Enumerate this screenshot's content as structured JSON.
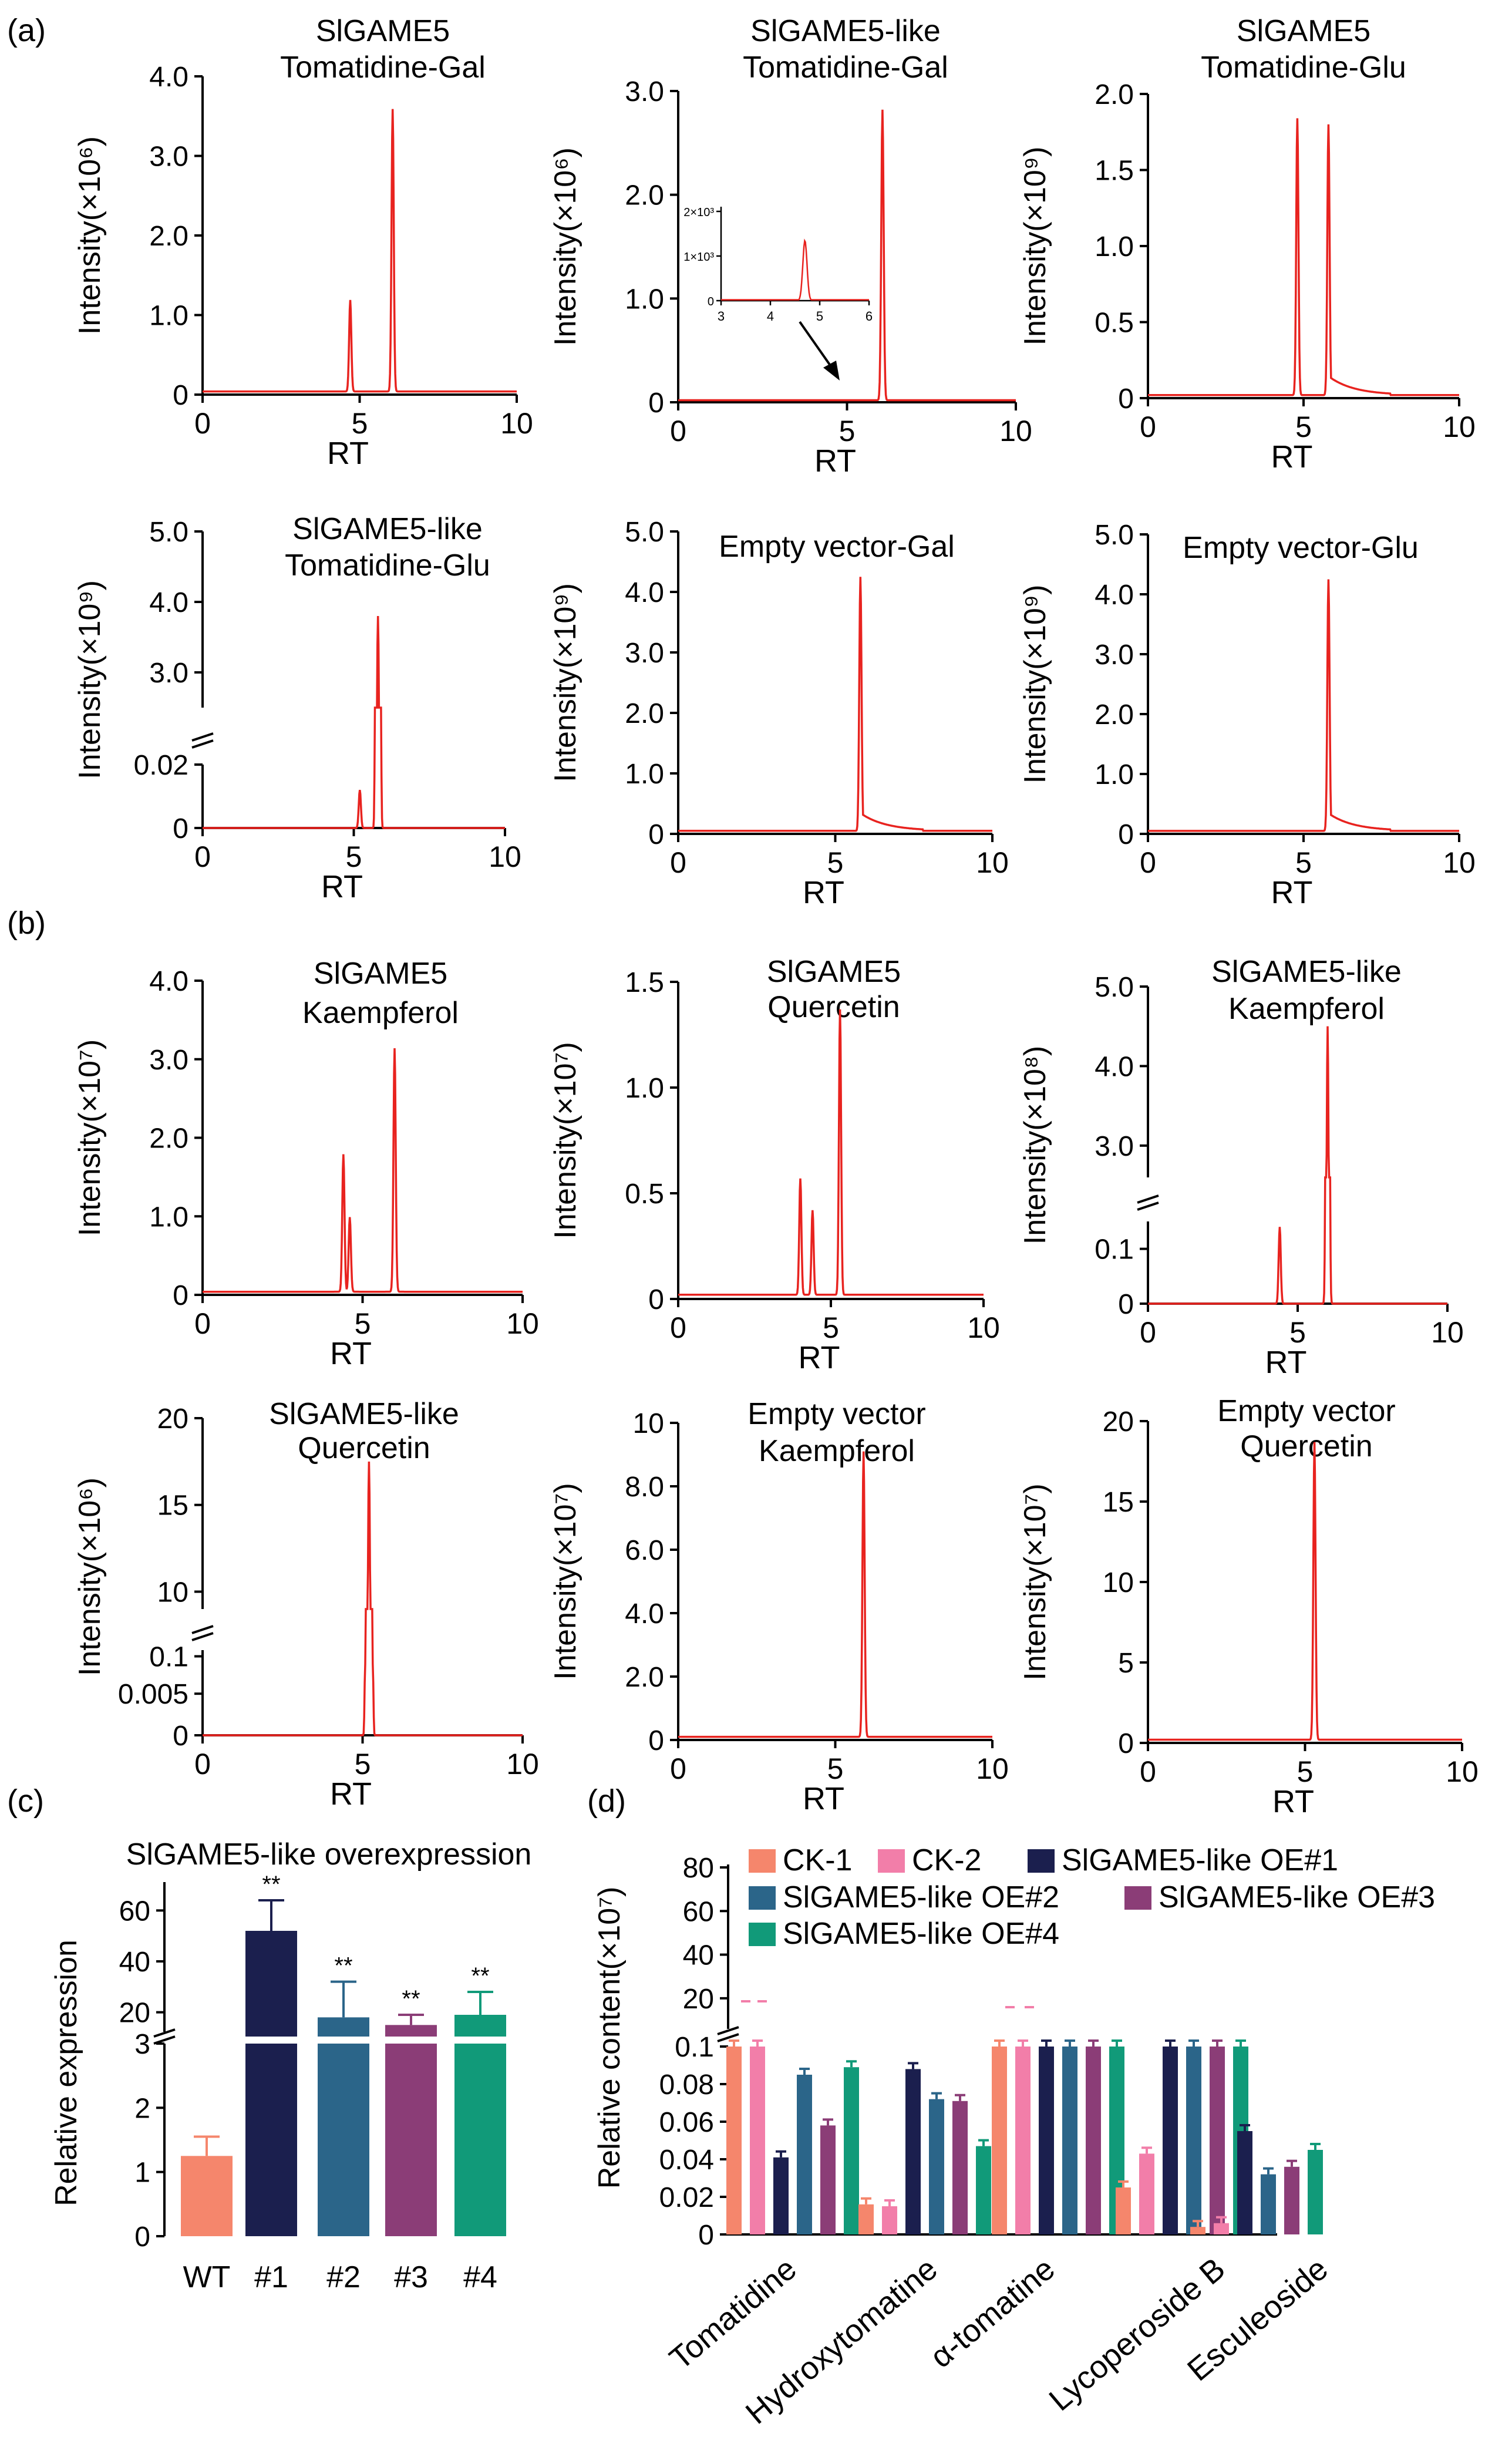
{
  "panel_labels": {
    "a": "(a)",
    "b": "(b)",
    "c": "(c)",
    "d": "(d)"
  },
  "colors": {
    "trace": "#e8231f",
    "axis": "#000000"
  },
  "chart_data": [
    {
      "id": "a1",
      "type": "line",
      "title": [
        "SlGAME5",
        "Tomatidine-Gal"
      ],
      "xlabel": "RT",
      "ylabel": "Intensity(×10⁶)",
      "xlim": [
        0,
        10
      ],
      "ylim": [
        0,
        4.0
      ],
      "xticks": [
        0,
        5,
        10
      ],
      "yticks": [
        0,
        1.0,
        2.0,
        3.0,
        4.0
      ],
      "ytick_labels": [
        "0",
        "1.0",
        "2.0",
        "3.0",
        "4.0"
      ],
      "peaks": [
        {
          "x": 4.7,
          "y": 1.15
        },
        {
          "x": 6.05,
          "y": 3.55
        }
      ],
      "baseline": 0.04
    },
    {
      "id": "a2",
      "type": "line",
      "title": [
        "SlGAME5-like",
        "Tomatidine-Gal"
      ],
      "xlabel": "RT",
      "ylabel": "Intensity(×10⁶)",
      "xlim": [
        0,
        10
      ],
      "ylim": [
        0,
        3.0
      ],
      "xticks": [
        0,
        5,
        10
      ],
      "yticks": [
        0,
        1.0,
        2.0,
        3.0
      ],
      "ytick_labels": [
        "0",
        "1.0",
        "2.0",
        "3.0"
      ],
      "peaks": [
        {
          "x": 6.05,
          "y": 2.8
        }
      ],
      "baseline": 0.02,
      "inset": {
        "xlim": [
          3,
          6
        ],
        "ylim": [
          0,
          2
        ],
        "xticks": [
          3,
          4,
          5,
          6
        ],
        "yticks": [
          1,
          2
        ],
        "ytick_labels": [
          "1×10³",
          "2×10³"
        ],
        "peaks": [
          {
            "x": 4.7,
            "y": 1.35
          }
        ]
      }
    },
    {
      "id": "a3",
      "type": "line",
      "title": [
        "SlGAME5",
        "Tomatidine-Glu"
      ],
      "xlabel": "RT",
      "ylabel": "Intensity(×10⁹)",
      "xlim": [
        0,
        10
      ],
      "ylim": [
        0,
        2.0
      ],
      "xticks": [
        0,
        5,
        10
      ],
      "yticks": [
        0,
        0.5,
        1.0,
        1.5,
        2.0
      ],
      "ytick_labels": [
        "0",
        "0.5",
        "1.0",
        "1.5",
        "2.0"
      ],
      "peaks": [
        {
          "x": 4.8,
          "y": 1.82
        },
        {
          "x": 5.8,
          "y": 1.78
        }
      ],
      "baseline": 0.02
    },
    {
      "id": "a4",
      "type": "line",
      "title": [
        "SlGAME5-like",
        "Tomatidine-Glu"
      ],
      "xlabel": "RT",
      "ylabel": "Intensity(×10⁹)",
      "xlim": [
        0,
        10
      ],
      "xticks": [
        0,
        5,
        10
      ],
      "ytick_labels": [
        "0",
        "0.02",
        "3.0",
        "4.0",
        "5.0"
      ],
      "broken_axis": true,
      "peaks": [
        {
          "x": 5.2,
          "y": 0.012
        },
        {
          "x": 5.8,
          "y": 3.8
        }
      ]
    },
    {
      "id": "a5",
      "type": "line",
      "title": [
        "Empty vector-Gal"
      ],
      "xlabel": "RT",
      "ylabel": "Intensity(×10⁹)",
      "xlim": [
        0,
        10
      ],
      "ylim": [
        0,
        5.0
      ],
      "xticks": [
        0,
        5,
        10
      ],
      "yticks": [
        0,
        1.0,
        2.0,
        3.0,
        4.0,
        5.0
      ],
      "ytick_labels": [
        "0",
        "1.0",
        "2.0",
        "3.0",
        "4.0",
        "5.0"
      ],
      "peaks": [
        {
          "x": 5.8,
          "y": 4.2
        }
      ],
      "baseline": 0.05
    },
    {
      "id": "a6",
      "type": "line",
      "title": [
        "Empty vector-Glu"
      ],
      "xlabel": "RT",
      "ylabel": "Intensity(×10⁹)",
      "xlim": [
        0,
        10
      ],
      "ylim": [
        0,
        5.0
      ],
      "xticks": [
        0,
        5,
        10
      ],
      "yticks": [
        0,
        1.0,
        2.0,
        3.0,
        4.0,
        5.0
      ],
      "ytick_labels": [
        "0",
        "1.0",
        "2.0",
        "3.0",
        "4.0",
        "5.0"
      ],
      "peaks": [
        {
          "x": 5.8,
          "y": 4.2
        }
      ],
      "baseline": 0.05
    },
    {
      "id": "b1",
      "type": "line",
      "title": [
        "SlGAME5",
        "Kaempferol"
      ],
      "xlabel": "RT",
      "ylabel": "Intensity(×10⁷)",
      "xlim": [
        0,
        10
      ],
      "ylim": [
        0,
        4.0
      ],
      "xticks": [
        0,
        5,
        10
      ],
      "yticks": [
        0,
        1.0,
        2.0,
        3.0,
        4.0
      ],
      "ytick_labels": [
        "0",
        "1.0",
        "2.0",
        "3.0",
        "4.0"
      ],
      "peaks": [
        {
          "x": 4.4,
          "y": 1.75
        },
        {
          "x": 4.6,
          "y": 0.95
        },
        {
          "x": 6.0,
          "y": 3.1
        }
      ],
      "baseline": 0.04
    },
    {
      "id": "b2",
      "type": "line",
      "title": [
        "SlGAME5",
        "Quercetin"
      ],
      "xlabel": "RT",
      "ylabel": "Intensity(×10⁷)",
      "xlim": [
        0,
        10
      ],
      "ylim": [
        0,
        1.5
      ],
      "xticks": [
        0,
        5,
        10
      ],
      "yticks": [
        0,
        0.5,
        1.0,
        1.5
      ],
      "ytick_labels": [
        "0",
        "0.5",
        "1.0",
        "1.5"
      ],
      "peaks": [
        {
          "x": 4.0,
          "y": 0.55
        },
        {
          "x": 4.4,
          "y": 0.4
        },
        {
          "x": 5.3,
          "y": 1.35
        }
      ],
      "baseline": 0.02
    },
    {
      "id": "b3",
      "type": "line",
      "title": [
        "SlGAME5-like",
        "Kaempferol"
      ],
      "xlabel": "RT",
      "ylabel": "Intensity(×10⁸)",
      "xlim": [
        0,
        10
      ],
      "xticks": [
        0,
        5,
        10
      ],
      "ytick_labels": [
        "0",
        "0.1",
        "3.0",
        "4.0",
        "5.0"
      ],
      "broken_axis": true,
      "peaks": [
        {
          "x": 4.4,
          "y": 0.14
        },
        {
          "x": 6.0,
          "y": 4.5
        }
      ]
    },
    {
      "id": "b4",
      "type": "line",
      "title": [
        "SlGAME5-like",
        "Quercetin"
      ],
      "xlabel": "RT",
      "ylabel": "Intensity(×10⁶)",
      "xlim": [
        0,
        10
      ],
      "xticks": [
        0,
        5,
        10
      ],
      "ytick_labels": [
        "0",
        "0.005",
        "0.1",
        "10",
        "15",
        "20"
      ],
      "broken_axis": true,
      "peaks": [
        {
          "x": 5.2,
          "y": 17.5
        }
      ]
    },
    {
      "id": "b5",
      "type": "line",
      "title": [
        "Empty vector",
        "Kaempferol"
      ],
      "xlabel": "RT",
      "ylabel": "Intensity(×10⁷)",
      "xlim": [
        0,
        10
      ],
      "ylim": [
        0,
        10
      ],
      "xticks": [
        0,
        5,
        10
      ],
      "yticks": [
        0,
        2.0,
        4.0,
        6.0,
        8.0,
        10
      ],
      "ytick_labels": [
        "0",
        "2.0",
        "4.0",
        "6.0",
        "8.0",
        "10"
      ],
      "peaks": [
        {
          "x": 5.9,
          "y": 9.0
        }
      ],
      "baseline": 0.1
    },
    {
      "id": "b6",
      "type": "line",
      "title": [
        "Empty vector",
        "Quercetin"
      ],
      "xlabel": "RT",
      "ylabel": "Intensity(×10⁷)",
      "xlim": [
        0,
        10
      ],
      "ylim": [
        0,
        20
      ],
      "xticks": [
        0,
        5,
        10
      ],
      "yticks": [
        0,
        5,
        10,
        15,
        20
      ],
      "ytick_labels": [
        "0",
        "5",
        "10",
        "15",
        "20"
      ],
      "peaks": [
        {
          "x": 5.3,
          "y": 18.5
        }
      ],
      "baseline": 0.2
    },
    {
      "id": "c",
      "type": "bar",
      "title": "SlGAME5-like overexpression",
      "xlabel": "",
      "ylabel": "Relative  expression",
      "categories": [
        "WT",
        "#1",
        "#2",
        "#3",
        "#4"
      ],
      "values": [
        1.25,
        52,
        18,
        15,
        19
      ],
      "errors": [
        0.3,
        12,
        14,
        4,
        9
      ],
      "significance": [
        "",
        "**",
        "**",
        "**",
        "**"
      ],
      "colors": [
        "#f5866c",
        "#1b1f4e",
        "#2b6589",
        "#8b3d77",
        "#119a79"
      ],
      "broken_axis": true,
      "ytick_labels": [
        "0",
        "1",
        "2",
        "3",
        "20",
        "40",
        "60"
      ]
    },
    {
      "id": "d",
      "type": "bar",
      "title": "",
      "xlabel": "",
      "ylabel": "Relative content(×10⁷)",
      "categories": [
        "Tomatidine",
        "Hydroxytomatine",
        "α-tomatine",
        "Lycoperoside B",
        "Esculeoside"
      ],
      "series": [
        {
          "name": "CK-1",
          "color": "#f5866c",
          "values": [
            0.1,
            0.016,
            0.1,
            0.025,
            0.004
          ]
        },
        {
          "name": "CK-2",
          "color": "#f27ea9",
          "values": [
            0.1,
            0.015,
            0.1,
            0.043,
            0.006
          ]
        },
        {
          "name": "SlGAME5-like OE#1",
          "color": "#1b1f4e",
          "values": [
            0.041,
            0.088,
            0.1,
            0.1,
            0.055
          ]
        },
        {
          "name": "SlGAME5-like OE#2",
          "color": "#2b6589",
          "values": [
            0.085,
            0.072,
            0.1,
            0.1,
            0.032
          ]
        },
        {
          "name": "SlGAME5-like OE#3",
          "color": "#8b3d77",
          "values": [
            0.058,
            0.071,
            0.1,
            0.1,
            0.036
          ]
        },
        {
          "name": "SlGAME5-like OE#4",
          "color": "#119a79",
          "values": [
            0.089,
            0.047,
            0.1,
            0.1,
            0.045
          ]
        }
      ],
      "broken_axis": true,
      "legend": "top",
      "ytick_labels": [
        "0",
        "0.02",
        "0.04",
        "0.06",
        "0.08",
        "0.1",
        "20",
        "40",
        "60",
        "80"
      ]
    }
  ]
}
